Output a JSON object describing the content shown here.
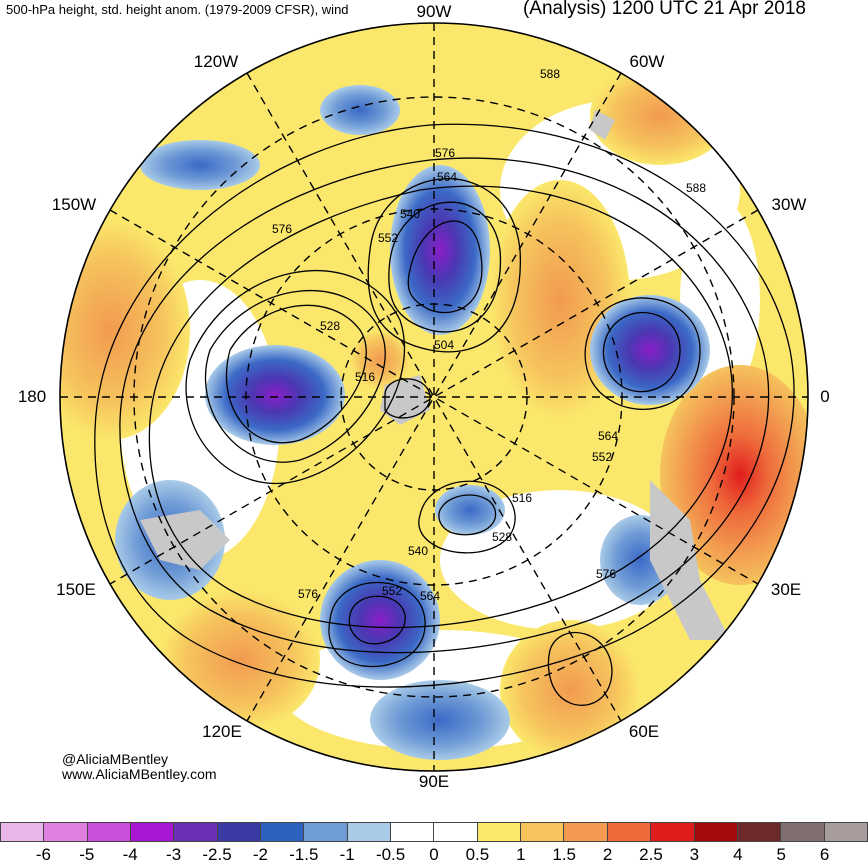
{
  "header": {
    "left_title": "500-hPa height, std. height anom. (1979-2009 CFSR), wind",
    "right_title": "(Analysis) 1200 UTC 21 Apr 2018"
  },
  "map": {
    "projection": "north-polar-stereographic",
    "longitude_labels": [
      "90W",
      "60W",
      "30W",
      "0",
      "30E",
      "60E",
      "90E",
      "120E",
      "150E",
      "180",
      "150W",
      "120W"
    ],
    "contour_labels": [
      "588",
      "588",
      "576",
      "564",
      "540",
      "552",
      "528",
      "516",
      "504",
      "564",
      "552",
      "516",
      "528",
      "540",
      "576",
      "576",
      "552",
      "564",
      "576"
    ],
    "colors": {
      "negative_strong": "#5a2fb0",
      "negative": "#3b69c6",
      "neutral": "#ffffff",
      "positive": "#f7c75a",
      "positive_strong": "#f05a35",
      "land_gray": "#c8c8c8"
    }
  },
  "credit": {
    "handle": "@AliciaMBentley",
    "site": "www.AliciaMBentley.com"
  },
  "colorbar": {
    "colors": [
      "#e8b6e8",
      "#e07fe0",
      "#c84fd8",
      "#a817d4",
      "#6a2fb4",
      "#3a3ba4",
      "#2f62bf",
      "#6f9bd6",
      "#a9cbe8",
      "#ffffff",
      "#ffffff",
      "#fbe76b",
      "#f6c35d",
      "#f29a4f",
      "#ee6a3b",
      "#e01d1d",
      "#a40a0a",
      "#6e2a2a",
      "#7f6f6f",
      "#a89c9c"
    ],
    "ticks": [
      "-6",
      "-5",
      "-4",
      "-3",
      "-2.5",
      "-2",
      "-1.5",
      "-1",
      "-0.5",
      "0",
      "0.5",
      "1",
      "1.5",
      "2",
      "2.5",
      "3",
      "4",
      "5",
      "6"
    ]
  }
}
